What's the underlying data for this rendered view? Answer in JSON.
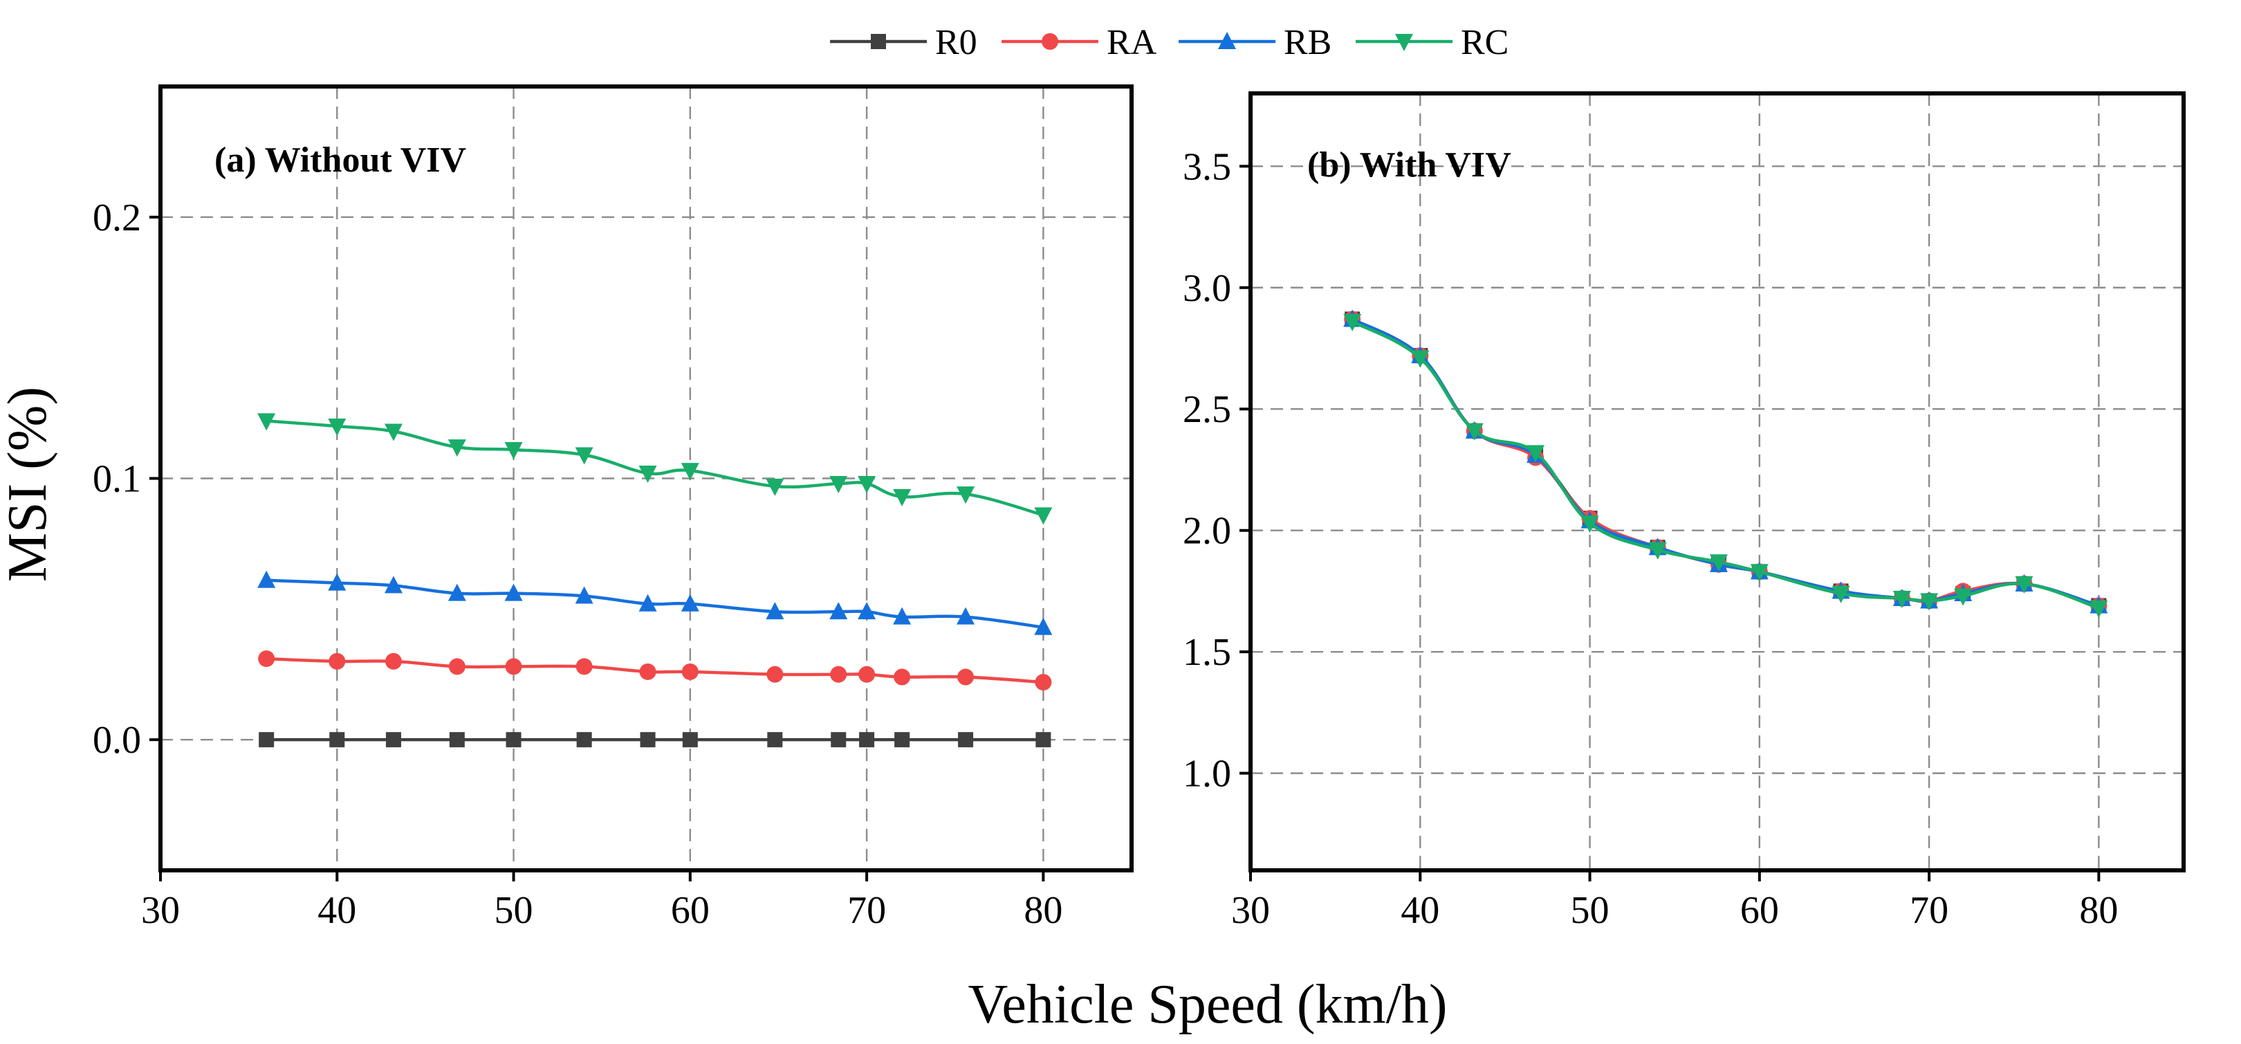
{
  "figure": {
    "xlabel": "Vehicle Speed (km/h)",
    "ylabel": "MSI (%)",
    "legend": [
      {
        "name": "R0",
        "color": "#404040",
        "marker": "square"
      },
      {
        "name": "RA",
        "color": "#f04848",
        "marker": "circle"
      },
      {
        "name": "RB",
        "color": "#1570dc",
        "marker": "triangle-up"
      },
      {
        "name": "RC",
        "color": "#1aad69",
        "marker": "triangle-down"
      }
    ],
    "legend_placement": "top-center"
  },
  "chart_data": [
    {
      "type": "line",
      "title": "(a) Without VIV",
      "xlabel": "Vehicle Speed (km/h)",
      "ylabel": "MSI (%)",
      "xlim": [
        30,
        85
      ],
      "ylim": [
        -0.05,
        0.25
      ],
      "xticks": [
        "30",
        "40",
        "50",
        "60",
        "70",
        "80"
      ],
      "yticks": [
        "0.0",
        "0.1",
        "0.2"
      ],
      "grid": true,
      "x": [
        36,
        40,
        43.2,
        46.8,
        50,
        54,
        57.6,
        60,
        64.8,
        68.4,
        70,
        72,
        75.6,
        80
      ],
      "series": [
        {
          "name": "R0",
          "values": [
            0,
            0,
            0,
            0,
            0,
            0,
            0,
            0,
            0,
            0,
            0,
            0,
            0,
            0
          ]
        },
        {
          "name": "RA",
          "values": [
            0.031,
            0.03,
            0.03,
            0.028,
            0.028,
            0.028,
            0.026,
            0.026,
            0.025,
            0.025,
            0.025,
            0.024,
            0.024,
            0.022
          ]
        },
        {
          "name": "RB",
          "values": [
            0.061,
            0.06,
            0.059,
            0.056,
            0.056,
            0.055,
            0.052,
            0.052,
            0.049,
            0.049,
            0.049,
            0.047,
            0.047,
            0.043
          ]
        },
        {
          "name": "RC",
          "values": [
            0.122,
            0.12,
            0.118,
            0.112,
            0.111,
            0.109,
            0.102,
            0.103,
            0.097,
            0.098,
            0.098,
            0.093,
            0.094,
            0.086
          ]
        }
      ]
    },
    {
      "type": "line",
      "title": "(b) With VIV",
      "xlabel": "Vehicle Speed (km/h)",
      "ylabel": "",
      "xlim": [
        30,
        85
      ],
      "ylim": [
        0.6,
        3.8
      ],
      "xticks": [
        "30",
        "40",
        "50",
        "60",
        "70",
        "80"
      ],
      "yticks": [
        "1.0",
        "1.5",
        "2.0",
        "2.5",
        "3.0",
        "3.5"
      ],
      "grid": true,
      "x": [
        36,
        40,
        43.2,
        46.8,
        50,
        54,
        57.6,
        60,
        64.8,
        68.4,
        70,
        72,
        75.6,
        80
      ],
      "series": [
        {
          "name": "R0",
          "values": [
            2.87,
            2.72,
            2.41,
            2.31,
            2.05,
            1.93,
            1.86,
            1.83,
            1.75,
            1.72,
            1.71,
            1.74,
            1.78,
            1.69
          ]
        },
        {
          "name": "RA",
          "values": [
            2.87,
            2.72,
            2.41,
            2.3,
            2.05,
            1.93,
            1.86,
            1.83,
            1.75,
            1.72,
            1.71,
            1.75,
            1.78,
            1.69
          ]
        },
        {
          "name": "RB",
          "values": [
            2.87,
            2.72,
            2.41,
            2.31,
            2.04,
            1.93,
            1.86,
            1.83,
            1.75,
            1.72,
            1.71,
            1.74,
            1.78,
            1.69
          ]
        },
        {
          "name": "RC",
          "values": [
            2.86,
            2.71,
            2.41,
            2.32,
            2.03,
            1.92,
            1.87,
            1.83,
            1.74,
            1.72,
            1.71,
            1.73,
            1.78,
            1.68
          ]
        }
      ]
    }
  ]
}
